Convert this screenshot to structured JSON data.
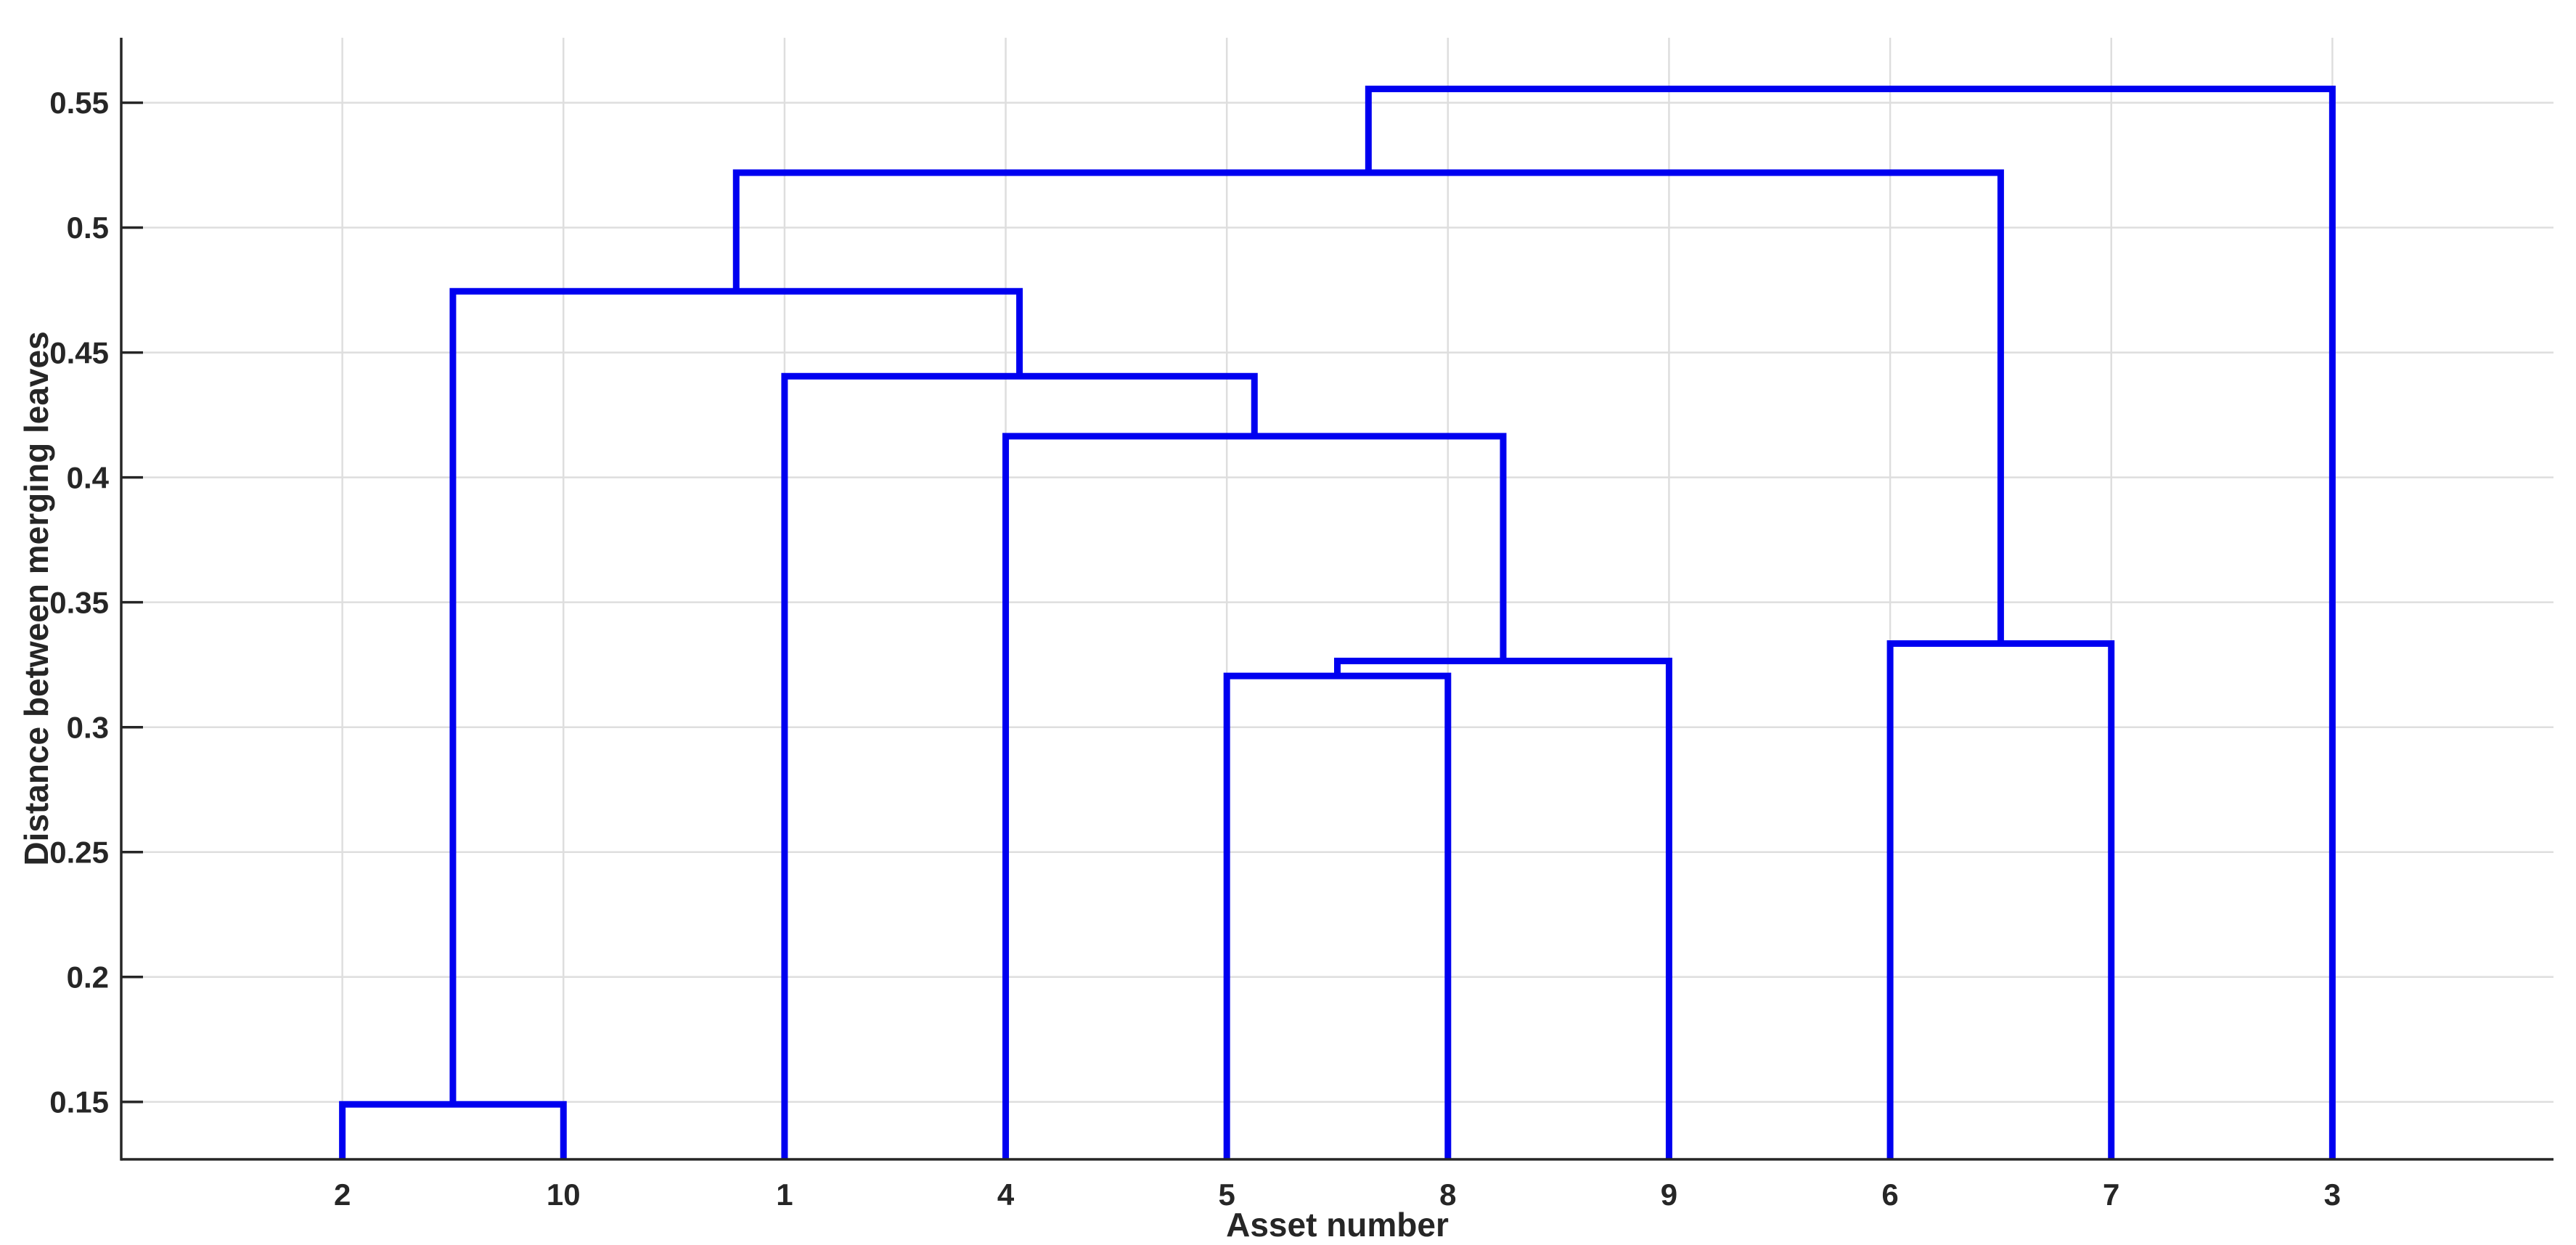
{
  "figure": {
    "background": "#FFFFFF"
  },
  "chart_data": {
    "type": "dendrogram",
    "title": "",
    "xlabel": "Asset number",
    "ylabel": "Distance between merging leaves",
    "leaf_order": [
      "2",
      "10",
      "1",
      "4",
      "5",
      "8",
      "9",
      "6",
      "7",
      "3"
    ],
    "ytick_labels": [
      "0.15",
      "0.2",
      "0.25",
      "0.3",
      "0.35",
      "0.4",
      "0.45",
      "0.5",
      "0.55"
    ],
    "yticks": [
      0.15,
      0.2,
      0.25,
      0.3,
      0.35,
      0.4,
      0.45,
      0.5,
      0.55
    ],
    "ylim": [
      0.127,
      0.576
    ],
    "xlim": [
      0,
      11
    ],
    "grid": true,
    "legend": null,
    "merges": [
      {
        "id": "c1",
        "children": [
          "2",
          "10"
        ],
        "height": 0.149
      },
      {
        "id": "c2",
        "children": [
          "5",
          "8"
        ],
        "height": 0.3205
      },
      {
        "id": "c3",
        "children": [
          "c2",
          "9"
        ],
        "height": 0.3265
      },
      {
        "id": "c4",
        "children": [
          "6",
          "7"
        ],
        "height": 0.3335
      },
      {
        "id": "c5",
        "children": [
          "4",
          "c3"
        ],
        "height": 0.4165
      },
      {
        "id": "c6",
        "children": [
          "1",
          "c5"
        ],
        "height": 0.4405
      },
      {
        "id": "c7",
        "children": [
          "c1",
          "c6"
        ],
        "height": 0.4745
      },
      {
        "id": "c8",
        "children": [
          "c7",
          "c4"
        ],
        "height": 0.522
      },
      {
        "id": "c9",
        "children": [
          "c8",
          "3"
        ],
        "height": 0.5555
      }
    ],
    "colors": {
      "link": "#0000F0",
      "axis": "#262626",
      "grid": "#DEDEDE",
      "text": "#262626"
    }
  }
}
